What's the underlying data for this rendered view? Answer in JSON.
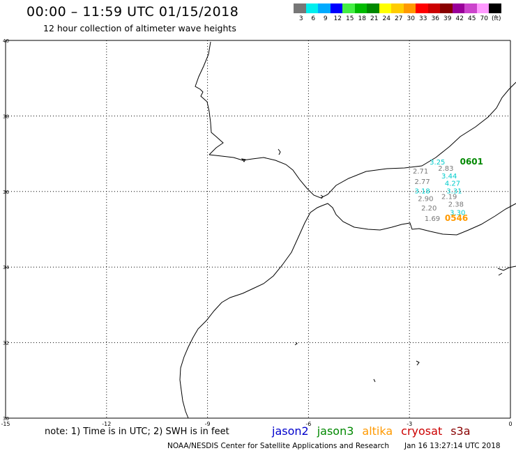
{
  "header": {
    "title": "00:00 – 11:59 UTC 01/15/2018",
    "subtitle": "12 hour collection of altimeter wave heights"
  },
  "legend": {
    "swatches": [
      "#777777",
      "#00eeee",
      "#00aaff",
      "#0000ff",
      "#44ee44",
      "#00bb00",
      "#008800",
      "#ffff00",
      "#ffcc00",
      "#ff9900",
      "#ff0000",
      "#cc0000",
      "#880000",
      "#990099",
      "#cc44cc",
      "#ff99ff",
      "#000000"
    ],
    "labels": [
      "3",
      "6",
      "9",
      "12",
      "15",
      "18",
      "21",
      "24",
      "27",
      "30",
      "33",
      "36",
      "39",
      "42",
      "45",
      "70",
      "(ft)"
    ]
  },
  "axes": {
    "x_ticks": [
      "-15",
      "-12",
      "-9",
      "-6",
      "-3",
      "0"
    ],
    "y_ticks": [
      "40",
      "38",
      "36",
      "34",
      "32",
      "30"
    ]
  },
  "observations": [
    {
      "value": "3.25",
      "color": "#00cccc",
      "lon": -2.4,
      "lat": 36.72
    },
    {
      "value": "2.71",
      "color": "#777777",
      "lon": -2.9,
      "lat": 36.48
    },
    {
      "value": "2.83",
      "color": "#777777",
      "lon": -2.15,
      "lat": 36.55
    },
    {
      "value": "3.44",
      "color": "#00cccc",
      "lon": -2.05,
      "lat": 36.35
    },
    {
      "value": "2.77",
      "color": "#777777",
      "lon": -2.85,
      "lat": 36.2
    },
    {
      "value": "4.27",
      "color": "#00cccc",
      "lon": -1.95,
      "lat": 36.15
    },
    {
      "value": "3.18",
      "color": "#00cccc",
      "lon": -2.85,
      "lat": 35.95
    },
    {
      "value": "3.31",
      "color": "#00cccc",
      "lon": -1.9,
      "lat": 35.95
    },
    {
      "value": "2.90",
      "color": "#777777",
      "lon": -2.75,
      "lat": 35.75
    },
    {
      "value": "2.19",
      "color": "#777777",
      "lon": -2.05,
      "lat": 35.8
    },
    {
      "value": "2.20",
      "color": "#777777",
      "lon": -2.65,
      "lat": 35.5
    },
    {
      "value": "2.38",
      "color": "#777777",
      "lon": -1.85,
      "lat": 35.6
    },
    {
      "value": "3.30",
      "color": "#00cccc",
      "lon": -1.8,
      "lat": 35.38
    },
    {
      "value": "1.69",
      "color": "#777777",
      "lon": -2.55,
      "lat": 35.22
    }
  ],
  "time_labels": [
    {
      "value": "0601",
      "color": "#008800",
      "lon": -1.5,
      "lat": 36.72
    },
    {
      "value": "0546",
      "color": "#ff9900",
      "lon": -1.95,
      "lat": 35.22
    }
  ],
  "note": "note: 1) Time is in UTC; 2) SWH is in feet",
  "satellites": [
    {
      "name": "jason2",
      "color": "#0000cc"
    },
    {
      "name": "jason3",
      "color": "#008800"
    },
    {
      "name": "altika",
      "color": "#ff9900"
    },
    {
      "name": "cryosat",
      "color": "#cc0000"
    },
    {
      "name": "s3a",
      "color": "#880000"
    }
  ],
  "footer": "NOAA/NESDIS Center for Satellite Applications and Research",
  "footer_time": "Jan 16 13:27:14 UTC 2018"
}
